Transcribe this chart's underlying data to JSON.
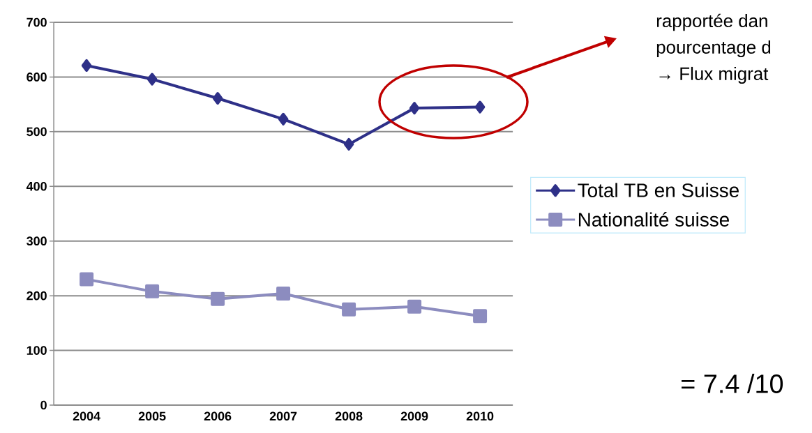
{
  "chart_data": {
    "type": "line",
    "categories": [
      "2004",
      "2005",
      "2006",
      "2007",
      "2008",
      "2009",
      "2010"
    ],
    "series": [
      {
        "name": "Total TB en Suisse",
        "color": "#2e3088",
        "marker": "diamond",
        "values": [
          621,
          596,
          561,
          523,
          477,
          543,
          545
        ]
      },
      {
        "name": "Nationalité suisse",
        "color": "#8c8cbf",
        "marker": "square",
        "values": [
          230,
          208,
          194,
          204,
          175,
          180,
          163
        ]
      }
    ],
    "ylim": [
      0,
      700
    ],
    "yticks": [
      0,
      100,
      200,
      300,
      400,
      500,
      600,
      700
    ],
    "grid": "y",
    "legend": "right",
    "annotations": [
      "rapportée dan",
      "pourcentage d",
      "→ Flux migrat",
      "= 7.4 /10"
    ]
  }
}
